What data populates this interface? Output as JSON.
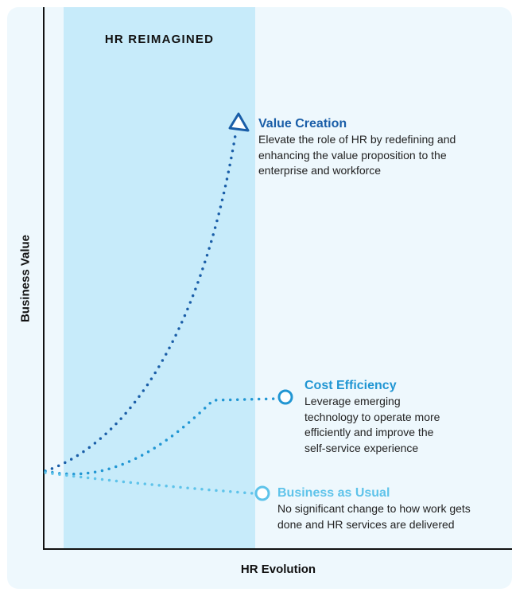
{
  "band_label": "HR REIMAGINED",
  "x_axis_label": "HR Evolution",
  "y_axis_label": "Business Value",
  "colors": {
    "dark_blue": "#1a5ea8",
    "mid_blue": "#2196d3",
    "light_blue": "#5ec3ea",
    "band": "#c7ebfa",
    "background": "#eef8fd"
  },
  "outcomes": [
    {
      "id": "value-creation",
      "title": "Value Creation",
      "description": "Elevate the role of HR by redefining and\nenhancing the value proposition to the\nenterprise and workforce",
      "marker": "triangle-icon",
      "color": "#1a5ea8"
    },
    {
      "id": "cost-efficiency",
      "title": "Cost Efficiency",
      "description": "Leverage emerging\ntechnology to operate more\nefficiently and improve the\nself-service experience",
      "marker": "circle-icon",
      "color": "#2196d3"
    },
    {
      "id": "business-as-usual",
      "title": "Business as Usual",
      "description": "No significant change to how work gets\ndone and HR services are delivered",
      "marker": "circle-icon",
      "color": "#5ec3ea"
    }
  ]
}
